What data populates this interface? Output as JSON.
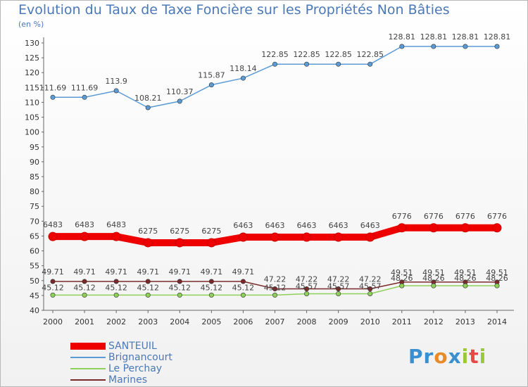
{
  "title": "Evolution du Taux de Taxe Foncière sur les Propriétés Non Bâties",
  "subtitle": "(en %)",
  "brand": {
    "letters": [
      {
        "ch": "P",
        "color": "#3a8fd0"
      },
      {
        "ch": "r",
        "color": "#3a8fd0"
      },
      {
        "ch": "o",
        "color": "#e88a28"
      },
      {
        "ch": "x",
        "color": "#3a8fd0"
      },
      {
        "ch": "i",
        "color": "#9ac83a"
      },
      {
        "ch": "t",
        "color": "#e84848"
      },
      {
        "ch": "i",
        "color": "#9ac83a"
      }
    ]
  },
  "chart_data": {
    "type": "line",
    "x": [
      "2000",
      "2001",
      "2002",
      "2003",
      "2004",
      "2005",
      "2006",
      "2007",
      "2008",
      "2009",
      "2010",
      "2011",
      "2012",
      "2013",
      "2014"
    ],
    "ylim": [
      40,
      130
    ],
    "yticks": [
      40,
      45,
      50,
      55,
      60,
      65,
      70,
      75,
      80,
      85,
      90,
      95,
      100,
      105,
      110,
      115,
      120,
      125,
      130
    ],
    "grid": false,
    "legend_position": "bottom-left",
    "series": [
      {
        "name": "SANTEUIL",
        "color": "#ee0000",
        "width": 10,
        "values": [
          64.83,
          64.83,
          64.83,
          62.75,
          62.75,
          62.75,
          64.63,
          64.63,
          64.63,
          64.63,
          64.63,
          67.76,
          67.76,
          67.76,
          67.76
        ],
        "labels": [
          "6483",
          "6483",
          "6483",
          "6275",
          "6275",
          "6275",
          "6463",
          "6463",
          "6463",
          "6463",
          "6463",
          "6776",
          "6776",
          "6776",
          "6776"
        ]
      },
      {
        "name": "Brignancourt",
        "color": "#5b9bd5",
        "width": 1.5,
        "values": [
          111.69,
          111.69,
          113.9,
          108.21,
          110.37,
          115.87,
          118.14,
          122.85,
          122.85,
          122.85,
          122.85,
          128.81,
          128.81,
          128.81,
          128.81
        ],
        "labels": [
          "111.69",
          "111.69",
          "113.9",
          "108.21",
          "110.37",
          "115.87",
          "118.14",
          "122.85",
          "122.85",
          "122.85",
          "122.85",
          "128.81",
          "128.81",
          "128.81",
          "128.81"
        ]
      },
      {
        "name": "Le Perchay",
        "color": "#8fd05a",
        "width": 1.5,
        "values": [
          45.12,
          45.12,
          45.12,
          45.12,
          45.12,
          45.12,
          45.12,
          45.12,
          45.57,
          45.57,
          45.57,
          48.26,
          48.26,
          48.26,
          48.26
        ],
        "labels": [
          "45.12",
          "45.12",
          "45.12",
          "45.12",
          "45.12",
          "45.12",
          "45.12",
          "45.12",
          "45.57",
          "45.57",
          "45.57",
          "48.26",
          "48.26",
          "48.26",
          "48.26"
        ]
      },
      {
        "name": "Marines",
        "color": "#7a2a2a",
        "width": 1.5,
        "values": [
          49.71,
          49.71,
          49.71,
          49.71,
          49.71,
          49.71,
          49.71,
          47.22,
          47.22,
          47.22,
          47.22,
          49.51,
          49.51,
          49.51,
          49.51
        ],
        "labels": [
          "49.71",
          "49.71",
          "49.71",
          "49.71",
          "49.71",
          "49.71",
          "49.71",
          "47.22",
          "47.22",
          "47.22",
          "47.22",
          "49.51",
          "49.51",
          "49.51",
          "49.51"
        ]
      }
    ]
  }
}
